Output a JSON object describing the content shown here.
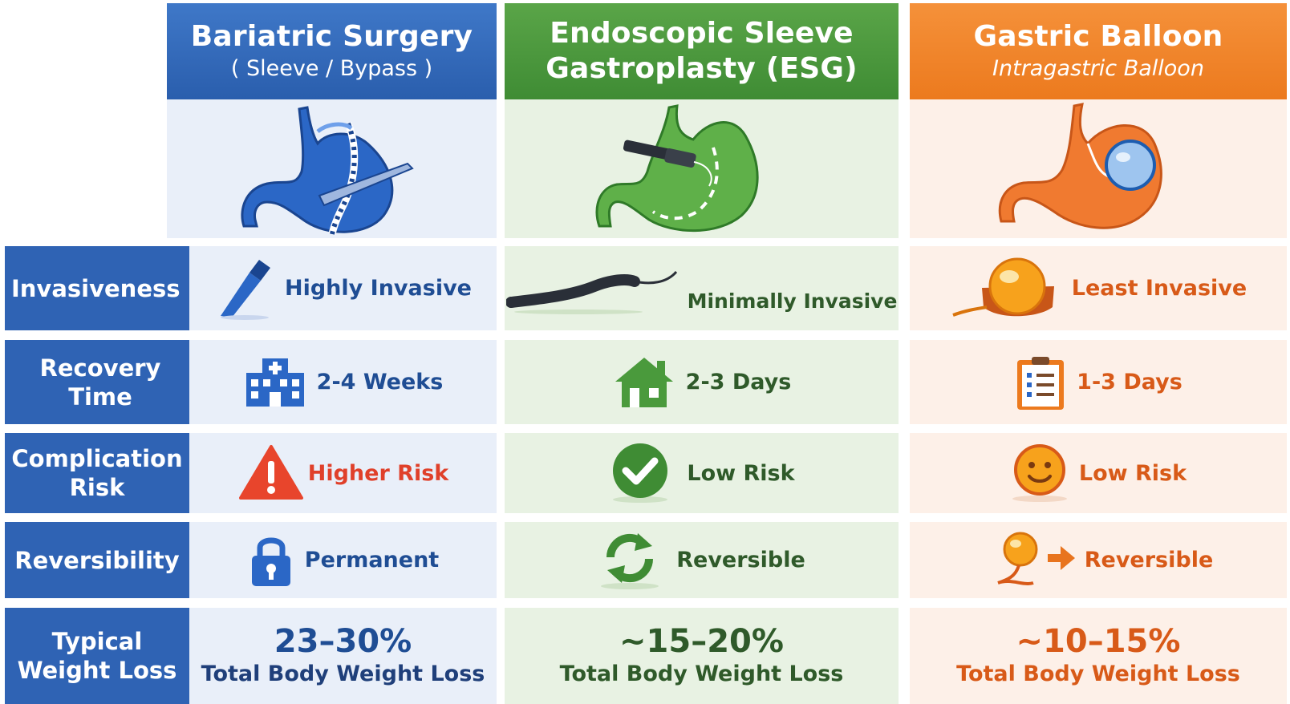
{
  "columns": [
    {
      "title": "Bariatric Surgery",
      "subtitle": "( Sleeve / Bypass )",
      "color": "#2f63b4",
      "illustration": "stomach-sleeve-icon"
    },
    {
      "title": "Endoscopic Sleeve",
      "title2": "Gastroplasty (ESG)",
      "color": "#4a9a3c",
      "illustration": "stomach-endoscope-icon"
    },
    {
      "title": "Gastric Balloon",
      "subtitle": "Intragastric Balloon",
      "color": "#f08228",
      "illustration": "stomach-balloon-icon"
    }
  ],
  "rows": {
    "invasiveness": {
      "label": "Invasiveness",
      "values": [
        "Highly Invasive",
        "Minimally Invasive",
        "Least Invasive"
      ],
      "icons": [
        "scalpel-icon",
        "endoscope-icon",
        "balloon-icon"
      ]
    },
    "recovery": {
      "label": "Recovery Time",
      "values": [
        "2-4 Weeks",
        "2-3 Days",
        "1-3 Days"
      ],
      "icons": [
        "hospital-icon",
        "house-icon",
        "clipboard-icon"
      ]
    },
    "complication": {
      "label": "Complication Risk",
      "label_line1": "Complication",
      "label_line2": "Risk",
      "values": [
        "Higher Risk",
        "Low Risk",
        "Low Risk"
      ],
      "icons": [
        "warning-icon",
        "checkmark-icon",
        "smiley-icon"
      ]
    },
    "reversibility": {
      "label": "Reversibility",
      "values": [
        "Permanent",
        "Reversible",
        "Reversible"
      ],
      "icons": [
        "lock-icon",
        "refresh-icon",
        "balloon-arrow-icon"
      ]
    },
    "weight_loss": {
      "label_line1": "Typical",
      "label_line2": "Weight Loss",
      "values": [
        "23–30%",
        "~15–20%",
        "~10–15%"
      ],
      "caption": "Total Body Weight Loss"
    }
  }
}
